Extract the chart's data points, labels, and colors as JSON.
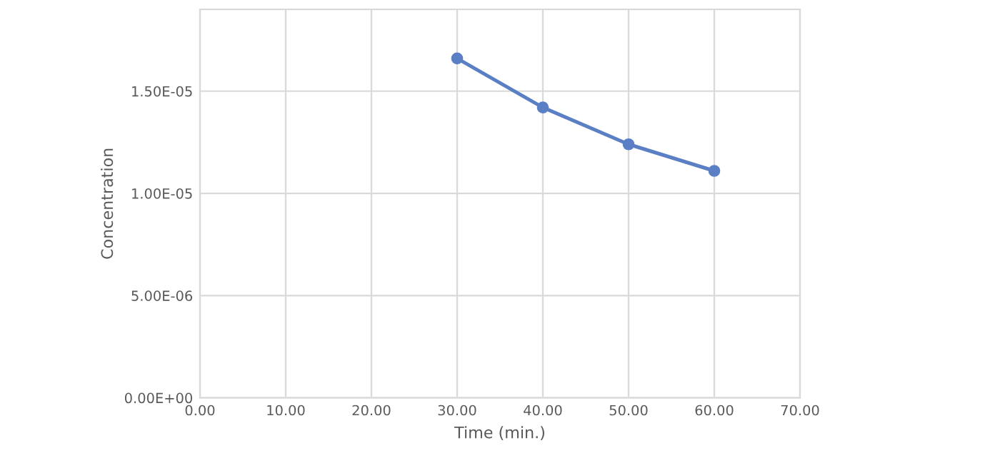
{
  "chart_data": {
    "type": "line",
    "xlabel": "Time (min.)",
    "ylabel": "Concentration",
    "x": [
      30,
      40,
      50,
      60
    ],
    "series": [
      {
        "color": "#5b7fc4",
        "values": [
          1.66e-05,
          1.42e-05,
          1.24e-05,
          1.11e-05
        ]
      }
    ],
    "xlim": [
      0,
      70
    ],
    "xticks": [
      {
        "value": 0,
        "label": "0.00"
      },
      {
        "value": 10,
        "label": "10.00"
      },
      {
        "value": 20,
        "label": "20.00"
      },
      {
        "value": 30,
        "label": "30.00"
      },
      {
        "value": 40,
        "label": "40.00"
      },
      {
        "value": 50,
        "label": "50.00"
      },
      {
        "value": 60,
        "label": "60.00"
      },
      {
        "value": 70,
        "label": "70.00"
      }
    ],
    "ylim": [
      0,
      1.9e-05
    ],
    "yticks": [
      {
        "value": 0,
        "label": "0.00E+00"
      },
      {
        "value": 5e-06,
        "label": "5.00E-06"
      },
      {
        "value": 1e-05,
        "label": "1.00E-05"
      },
      {
        "value": 1.5e-05,
        "label": "1.50E-05"
      }
    ],
    "grid": true,
    "marker": "circle",
    "line_style": "solid"
  }
}
